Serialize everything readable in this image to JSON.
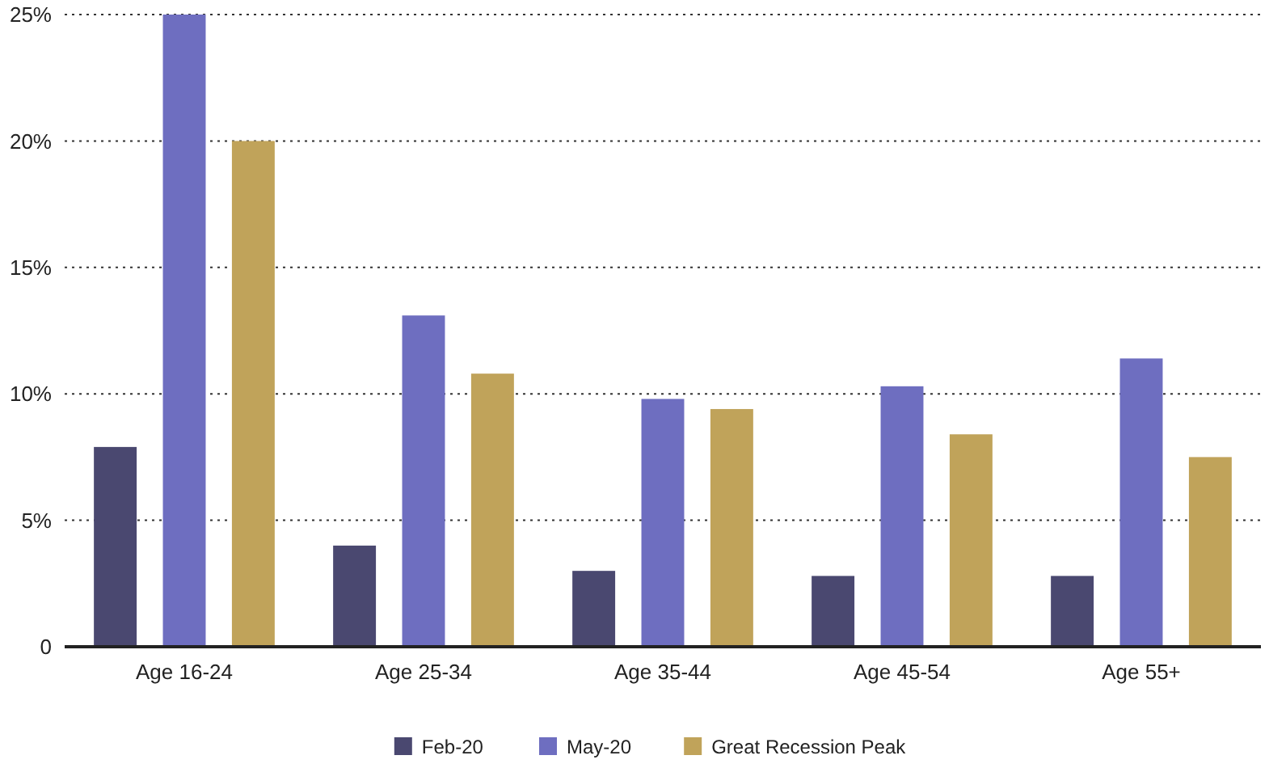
{
  "chart_data": {
    "type": "bar",
    "categories": [
      "Age 16-24",
      "Age 25-34",
      "Age 35-44",
      "Age 45-54",
      "Age 55+"
    ],
    "series": [
      {
        "name": "Feb-20",
        "color": "#4a4870",
        "values": [
          7.9,
          4.0,
          3.0,
          2.8,
          2.8
        ]
      },
      {
        "name": "May-20",
        "color": "#6e6ec0",
        "values": [
          25.0,
          13.1,
          9.8,
          10.3,
          11.4
        ]
      },
      {
        "name": "Great Recession Peak",
        "color": "#c0a35a",
        "values": [
          20.0,
          10.8,
          9.4,
          8.4,
          7.5
        ]
      }
    ],
    "ylim": [
      0,
      25
    ],
    "yticks": [
      {
        "value": 0,
        "label": "0"
      },
      {
        "value": 5,
        "label": "5%"
      },
      {
        "value": 10,
        "label": "10%"
      },
      {
        "value": 15,
        "label": "15%"
      },
      {
        "value": 20,
        "label": "20%"
      },
      {
        "value": 25,
        "label": "25%"
      }
    ],
    "grid": "y",
    "legend": "bottom"
  }
}
